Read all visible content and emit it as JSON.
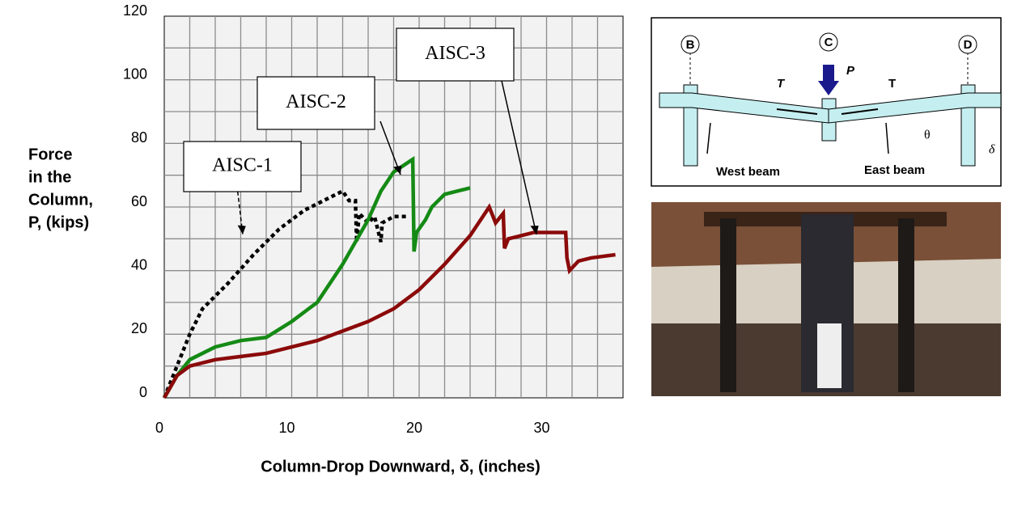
{
  "chart_data": {
    "type": "line",
    "ylabel": [
      "Force",
      "in the",
      "Column,",
      "P, (kips)"
    ],
    "xlabel": "Column-Drop Downward, δ, (inches)",
    "xlim": [
      0,
      36
    ],
    "ylim": [
      0,
      120
    ],
    "xticks": [
      0,
      10,
      20,
      30
    ],
    "yticks": [
      0,
      20,
      40,
      60,
      80,
      100,
      120
    ],
    "xgrid": [
      2,
      4,
      6,
      8,
      10,
      12,
      14,
      16,
      18,
      20,
      22,
      24,
      26,
      28,
      30,
      32,
      34
    ],
    "ygrid": [
      10,
      20,
      30,
      40,
      50,
      60,
      70,
      80,
      90,
      100,
      110
    ],
    "grid": true,
    "series": [
      {
        "name": "AISC-1",
        "color": "#000000",
        "dash": true,
        "x": [
          0,
          1,
          2,
          3,
          5,
          7,
          9,
          11,
          13,
          14,
          14.5,
          15,
          15.1,
          15.3,
          16,
          16.5,
          17,
          17.1,
          18,
          19
        ],
        "values": [
          0,
          10,
          20,
          28,
          36,
          45,
          53,
          59,
          63,
          65,
          62,
          62,
          49,
          58,
          55,
          57,
          49,
          55,
          57,
          57
        ]
      },
      {
        "name": "AISC-2",
        "color": "#158a15",
        "dash": false,
        "x": [
          0,
          1,
          2,
          4,
          6,
          8,
          10,
          12,
          14,
          16,
          17,
          18,
          19.5,
          19.6,
          19.8,
          20.5,
          21,
          22,
          23,
          24
        ],
        "values": [
          0,
          7,
          12,
          16,
          18,
          19,
          24,
          30,
          42,
          56,
          65,
          71,
          75,
          46,
          52,
          56,
          60,
          64,
          65,
          66
        ]
      },
      {
        "name": "AISC-3",
        "color": "#8b0a0a",
        "dash": false,
        "x": [
          0,
          1,
          2,
          4,
          6,
          8,
          10,
          12,
          14,
          16,
          18,
          20,
          22,
          24,
          25.5,
          26,
          26.6,
          26.7,
          27,
          28,
          29,
          30,
          31.5,
          31.6,
          31.8,
          32.5,
          33.5,
          35.4
        ],
        "values": [
          0,
          7,
          10,
          12,
          13,
          14,
          16,
          18,
          21,
          24,
          28,
          34,
          42,
          51,
          60,
          55,
          58,
          47,
          50,
          51,
          52,
          52,
          52,
          44,
          40,
          43,
          44,
          45
        ]
      }
    ]
  },
  "diagram": {
    "nodes": [
      "B",
      "C",
      "D"
    ],
    "forces": [
      "T",
      "P",
      "T"
    ],
    "angle": "θ",
    "drop": "δ",
    "beams": [
      "West beam",
      "East beam"
    ]
  }
}
